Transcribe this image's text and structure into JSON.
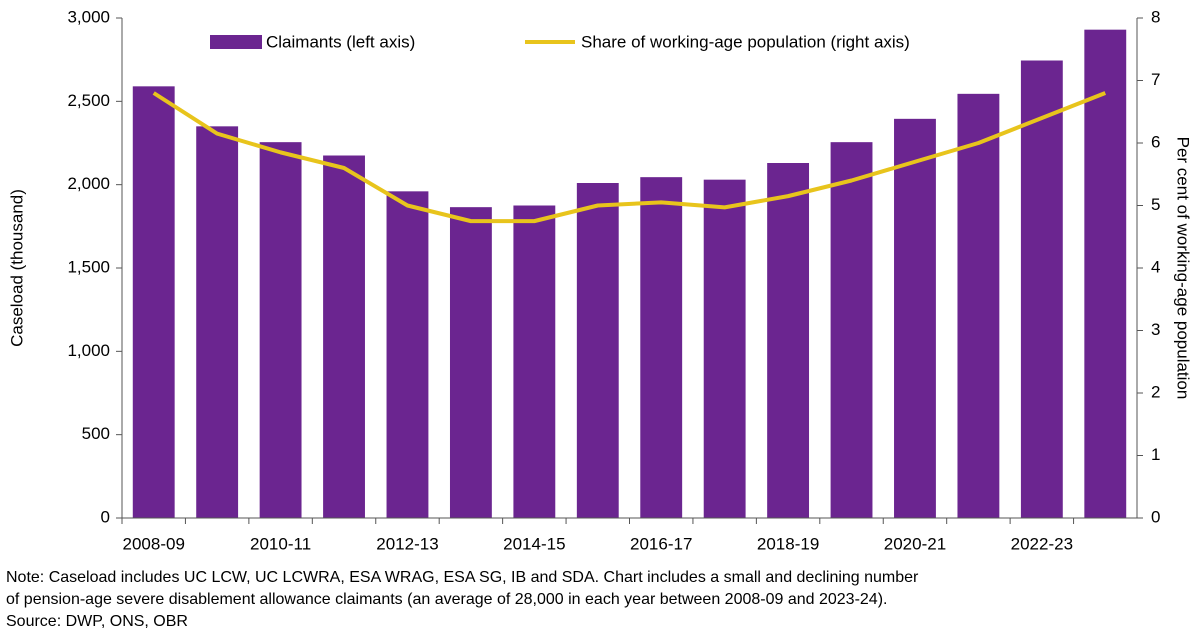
{
  "chart_data": {
    "type": "bar_line",
    "categories": [
      "2008-09",
      null,
      "2010-11",
      null,
      "2012-13",
      null,
      "2014-15",
      null,
      "2016-17",
      null,
      "2018-19",
      null,
      "2020-21",
      null,
      "2022-23",
      null
    ],
    "series": [
      {
        "name": "Claimants (left axis)",
        "type": "bar",
        "color": "#6b2590",
        "values": [
          2590,
          2350,
          2255,
          2175,
          1960,
          1865,
          1875,
          2010,
          2045,
          2030,
          2130,
          2255,
          2395,
          2545,
          2745,
          2930
        ]
      },
      {
        "name": "Share of working-age population (right axis)",
        "type": "line",
        "axis": "y2",
        "color": "#e8c41c",
        "values": [
          6.8,
          6.15,
          5.85,
          5.6,
          5.0,
          4.75,
          4.75,
          5.0,
          5.05,
          4.97,
          5.15,
          5.4,
          5.7,
          6.0,
          6.4,
          6.8
        ]
      }
    ],
    "ylabel": "Caseload (thousand)",
    "y2label": "Per cent of working-age population",
    "ylim": [
      0,
      3000
    ],
    "yticks": [
      0,
      500,
      {
        "value": 1000,
        "label": "1,000"
      },
      {
        "value": 1500,
        "label": "1,500"
      },
      {
        "value": 2000,
        "label": "2,000"
      },
      {
        "value": 2500,
        "label": "2,500"
      },
      {
        "value": 3000,
        "label": "3,000"
      }
    ],
    "y2lim": [
      0,
      8
    ],
    "y2ticks": [
      0,
      1,
      2,
      3,
      4,
      5,
      6,
      7,
      8
    ],
    "grid": false,
    "legend": "top",
    "note": [
      "Note: Caseload includes UC LCW, UC LCWRA, ESA WRAG, ESA SG, IB and SDA. Chart includes a small and declining number",
      "of pension-age severe disablement allowance claimants (an average of 28,000 in each year between 2008-09 and 2023-24).",
      "Source: DWP, ONS, OBR"
    ]
  }
}
